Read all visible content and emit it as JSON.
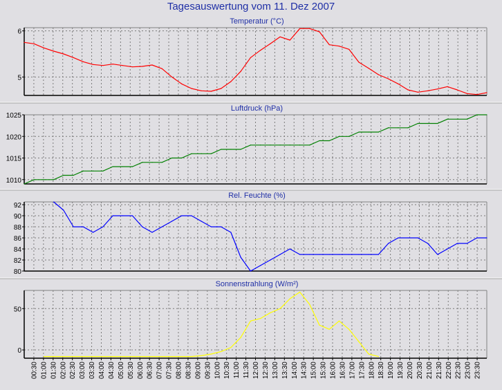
{
  "page_title": "Tagesauswertung vom 11. Dez 2007",
  "x_ticks": [
    "00:30",
    "01:00",
    "01:30",
    "02:00",
    "02:30",
    "03:00",
    "03:30",
    "04:00",
    "04:30",
    "05:00",
    "05:30",
    "06:00",
    "06:30",
    "07:00",
    "07:30",
    "08:00",
    "08:30",
    "09:00",
    "09:30",
    "10:00",
    "10:30",
    "11:00",
    "11:30",
    "12:00",
    "12:30",
    "13:00",
    "13:30",
    "14:00",
    "14:30",
    "15:00",
    "15:30",
    "16:00",
    "16:30",
    "17:00",
    "17:30",
    "18:00",
    "18:30",
    "19:00",
    "19:30",
    "20:00",
    "20:30",
    "21:00",
    "21:30",
    "22:00",
    "22:30",
    "23:00",
    "23:30"
  ],
  "colors": {
    "background": "#e0dfe3",
    "plot_background": "#e0dfe3",
    "grid": "#7a7a7a",
    "axis": "#000000",
    "title": "#1f2fa6"
  },
  "chart_data": [
    {
      "type": "line",
      "title": "Temperatur (°C)",
      "color": "#ff0000",
      "grid": true,
      "yticks": [
        5,
        6
      ],
      "ylim": [
        4.6,
        6.07
      ],
      "xlim": [
        0,
        23.5
      ],
      "x": [
        0,
        0.5,
        1,
        1.5,
        2,
        2.5,
        3,
        3.5,
        4,
        4.5,
        5,
        5.5,
        6,
        6.5,
        7,
        7.5,
        8,
        8.5,
        9,
        9.5,
        10,
        10.5,
        11,
        11.5,
        12,
        12.5,
        13,
        13.5,
        14,
        14.5,
        15,
        15.5,
        16,
        16.5,
        17,
        17.5,
        18,
        18.5,
        19,
        19.5,
        20,
        20.5,
        21,
        21.5,
        22,
        22.5,
        23,
        23.5
      ],
      "values": [
        5.75,
        5.72,
        5.63,
        5.56,
        5.5,
        5.42,
        5.33,
        5.27,
        5.25,
        5.28,
        5.25,
        5.22,
        5.23,
        5.26,
        5.18,
        5.0,
        4.85,
        4.75,
        4.7,
        4.69,
        4.75,
        4.9,
        5.12,
        5.42,
        5.58,
        5.72,
        5.87,
        5.8,
        6.05,
        6.05,
        5.98,
        5.7,
        5.67,
        5.6,
        5.32,
        5.19,
        5.05,
        4.96,
        4.85,
        4.72,
        4.67,
        4.7,
        4.74,
        4.79,
        4.72,
        4.64,
        4.62,
        4.66
      ]
    },
    {
      "type": "line",
      "title": "Luftdruck (hPa)",
      "color": "#008000",
      "grid": true,
      "yticks": [
        1010,
        1015,
        1020,
        1025
      ],
      "ylim": [
        1009,
        1025
      ],
      "xlim": [
        0,
        23.5
      ],
      "x": [
        0,
        0.5,
        1,
        1.5,
        2,
        2.5,
        3,
        3.5,
        4,
        4.5,
        5,
        5.5,
        6,
        6.5,
        7,
        7.5,
        8,
        8.5,
        9,
        9.5,
        10,
        10.5,
        11,
        11.5,
        12,
        12.5,
        13,
        13.5,
        14,
        14.5,
        15,
        15.5,
        16,
        16.5,
        17,
        17.5,
        18,
        18.5,
        19,
        19.5,
        20,
        20.5,
        21,
        21.5,
        22,
        22.5,
        23,
        23.5
      ],
      "values": [
        1009,
        1010,
        1010,
        1010,
        1011,
        1011,
        1012,
        1012,
        1012,
        1013,
        1013,
        1013,
        1014,
        1014,
        1014,
        1015,
        1015,
        1016,
        1016,
        1016,
        1017,
        1017,
        1017,
        1018,
        1018,
        1018,
        1018,
        1018,
        1018,
        1018,
        1019,
        1019,
        1020,
        1020,
        1021,
        1021,
        1021,
        1022,
        1022,
        1022,
        1023,
        1023,
        1023,
        1024,
        1024,
        1024,
        1025,
        1025
      ]
    },
    {
      "type": "line",
      "title": "Rel. Feuchte (%)",
      "color": "#0000ff",
      "grid": true,
      "yticks": [
        80,
        82,
        84,
        86,
        88,
        90,
        92
      ],
      "ylim": [
        80,
        92.5
      ],
      "xlim": [
        0,
        23.5
      ],
      "x": [
        1.5,
        2,
        2.5,
        3,
        3.5,
        4,
        4.5,
        5,
        5.5,
        6,
        6.5,
        7,
        7.5,
        8,
        8.5,
        9,
        9.5,
        10,
        10.5,
        11,
        11.5,
        12,
        12.5,
        13,
        13.5,
        14,
        14.5,
        15,
        15.5,
        16,
        16.5,
        17,
        17.5,
        18,
        18.5,
        19,
        19.5,
        20,
        20.5,
        21,
        21.5,
        22,
        22.5,
        23,
        23.5
      ],
      "values": [
        92.5,
        91,
        88,
        88,
        87,
        88,
        90,
        90,
        90,
        88,
        87,
        88,
        89,
        90,
        90,
        89,
        88,
        88,
        87,
        82.5,
        80,
        81,
        82,
        83,
        84,
        83,
        83,
        83,
        83,
        83,
        83,
        83,
        83,
        83,
        85,
        86,
        86,
        86,
        85,
        83,
        84,
        85,
        85,
        86,
        86
      ]
    },
    {
      "type": "line",
      "title": "Sonnenstrahlung (W/m²)",
      "color": "#ffff00",
      "grid": true,
      "yticks": [
        0,
        50
      ],
      "ylim": [
        -10,
        72
      ],
      "xlim": [
        0,
        23.5
      ],
      "x": [
        1,
        1.5,
        2,
        2.5,
        3,
        3.5,
        4,
        4.5,
        5,
        5.5,
        6,
        6.5,
        7,
        7.5,
        8,
        8.5,
        9,
        9.5,
        10,
        10.5,
        11,
        11.5,
        12,
        12.5,
        13,
        13.5,
        14,
        14.5,
        15,
        15.5,
        16,
        16.5,
        17,
        17.5,
        18
      ],
      "values": [
        -8,
        -8,
        -8,
        -8,
        -8,
        -8,
        -8,
        -8,
        -8,
        -8,
        -8,
        -8,
        -8,
        -8,
        -8,
        -8,
        -7,
        -5,
        -2,
        3,
        15,
        35,
        38,
        45,
        50,
        62,
        70,
        55,
        30,
        25,
        35,
        25,
        10,
        -5,
        -8
      ]
    }
  ]
}
